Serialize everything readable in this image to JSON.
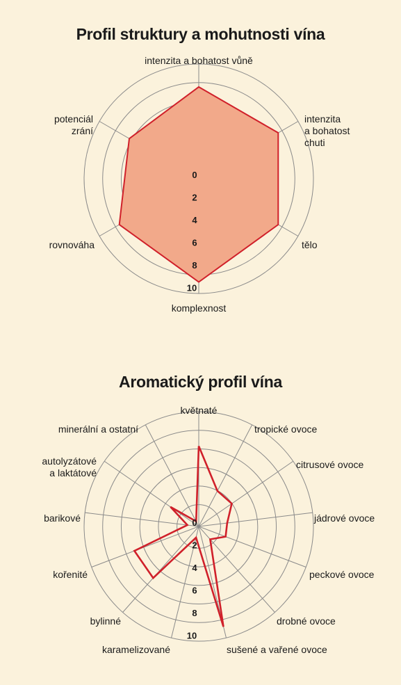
{
  "chart_data": [
    {
      "type": "radar",
      "title": "Profil struktury a mohutnosti vína",
      "axes": [
        [
          "intenzita a bohatost vůně"
        ],
        [
          "intenzita",
          "a bohatost",
          "chuti"
        ],
        [
          "tělo"
        ],
        [
          "komplexnost"
        ],
        [
          "rovnováha"
        ],
        [
          "potenciál",
          "zrání"
        ]
      ],
      "series": [
        {
          "values": [
            8,
            8,
            8,
            9,
            8,
            7
          ],
          "fill": "#f2a98a",
          "stroke": "#d0202a"
        }
      ],
      "rlim": [
        0,
        10
      ],
      "ticks": [
        "0",
        "2",
        "4",
        "6",
        "8",
        "10"
      ]
    },
    {
      "type": "radar",
      "title": "Aromatický profil vína",
      "axes": [
        [
          "květnaté"
        ],
        [
          "tropické ovoce"
        ],
        [
          "citrusové ovoce"
        ],
        [
          "jádrové ovoce"
        ],
        [
          "peckové ovoce"
        ],
        [
          "drobné ovoce"
        ],
        [
          "sušené a vařené ovoce"
        ],
        [
          "karamelizované"
        ],
        [
          "bylinné"
        ],
        [
          "kořenité"
        ],
        [
          "barikové"
        ],
        [
          "autolyzátové",
          "a laktátové"
        ],
        [
          "minerální a ostatní"
        ]
      ],
      "series": [
        {
          "values": [
            7,
            3.5,
            3.5,
            2.5,
            2.5,
            1.5,
            9,
            1,
            6,
            6,
            1,
            3,
            0.5
          ],
          "fill": "none",
          "stroke": "#d0202a"
        }
      ],
      "rlim": [
        0,
        10
      ],
      "ticks": [
        "0",
        "2",
        "4",
        "6",
        "8",
        "10"
      ]
    }
  ]
}
